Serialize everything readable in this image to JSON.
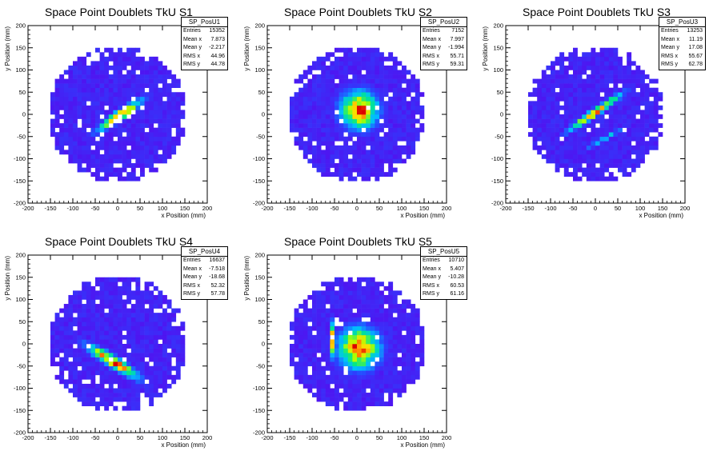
{
  "charts": [
    {
      "title": "Space Point Doublets TkU S1",
      "stat_name": "SP_PosU1",
      "stats": [
        {
          "label": "Entries",
          "value": "15352"
        },
        {
          "label": "Mean x",
          "value": "7.873"
        },
        {
          "label": "Mean y",
          "value": "-2.217"
        },
        {
          "label": "RMS x",
          "value": "44.96"
        },
        {
          "label": "RMS y",
          "value": "44.78"
        }
      ]
    },
    {
      "title": "Space Point Doublets TkU S2",
      "stat_name": "SP_PosU2",
      "stats": [
        {
          "label": "Entries",
          "value": "7152"
        },
        {
          "label": "Mean x",
          "value": "7.997"
        },
        {
          "label": "Mean y",
          "value": "-1.994"
        },
        {
          "label": "RMS x",
          "value": "55.71"
        },
        {
          "label": "RMS y",
          "value": "59.31"
        }
      ]
    },
    {
      "title": "Space Point Doublets TkU S3",
      "stat_name": "SP_PosU3",
      "stats": [
        {
          "label": "Entries",
          "value": "13253"
        },
        {
          "label": "Mean x",
          "value": "11.19"
        },
        {
          "label": "Mean y",
          "value": "17.08"
        },
        {
          "label": "RMS x",
          "value": "55.67"
        },
        {
          "label": "RMS y",
          "value": "62.78"
        }
      ]
    },
    {
      "title": "Space Point Doublets TkU S4",
      "stat_name": "SP_PosU4",
      "stats": [
        {
          "label": "Entries",
          "value": "16637"
        },
        {
          "label": "Mean x",
          "value": "-7.518"
        },
        {
          "label": "Mean y",
          "value": "-18.68"
        },
        {
          "label": "RMS x",
          "value": "52.32"
        },
        {
          "label": "RMS y",
          "value": "57.78"
        }
      ]
    },
    {
      "title": "Space Point Doublets TkU S5",
      "stat_name": "SP_PosU5",
      "stats": [
        {
          "label": "Entries",
          "value": "10710"
        },
        {
          "label": "Mean x",
          "value": "5.407"
        },
        {
          "label": "Mean y",
          "value": "-10.28"
        },
        {
          "label": "RMS x",
          "value": "60.53"
        },
        {
          "label": "RMS y",
          "value": "61.16"
        }
      ]
    }
  ],
  "chart_data": [
    {
      "type": "heatmap",
      "title": "Space Point Doublets TkU S1",
      "xlabel": "x Position (mm)",
      "ylabel": "y Position (mm)",
      "xlim": [
        -200,
        200
      ],
      "ylim": [
        -200,
        200
      ],
      "xticks": [
        -200,
        -150,
        -100,
        -50,
        0,
        50,
        100,
        150,
        200
      ],
      "yticks": [
        -200,
        -150,
        -100,
        -50,
        0,
        50,
        100,
        150,
        200
      ],
      "sensitive_radius_mm": 155,
      "features": [
        {
          "shape": "band",
          "center": [
            5,
            -2
          ],
          "angle_deg": 35,
          "length_mm": 110,
          "width_mm": 16,
          "peak": "red"
        }
      ]
    },
    {
      "type": "heatmap",
      "title": "Space Point Doublets TkU S2",
      "xlabel": "x Position (mm)",
      "ylabel": "y Position (mm)",
      "xlim": [
        -200,
        200
      ],
      "ylim": [
        -200,
        200
      ],
      "xticks": [
        -200,
        -150,
        -100,
        -50,
        0,
        50,
        100,
        150,
        200
      ],
      "yticks": [
        -200,
        -150,
        -100,
        -50,
        0,
        50,
        100,
        150,
        200
      ],
      "sensitive_radius_mm": 155,
      "features": [
        {
          "shape": "blob",
          "center": [
            5,
            10
          ],
          "spread_mm": 55,
          "peak": "red"
        }
      ]
    },
    {
      "type": "heatmap",
      "title": "Space Point Doublets TkU S3",
      "xlabel": "x Position (mm)",
      "ylabel": "y Position (mm)",
      "xlim": [
        -200,
        200
      ],
      "ylim": [
        -200,
        200
      ],
      "xticks": [
        -200,
        -150,
        -100,
        -50,
        0,
        50,
        100,
        150,
        200
      ],
      "yticks": [
        -200,
        -150,
        -100,
        -50,
        0,
        50,
        100,
        150,
        200
      ],
      "sensitive_radius_mm": 155,
      "features": [
        {
          "shape": "band",
          "center": [
            0,
            5
          ],
          "angle_deg": 35,
          "length_mm": 130,
          "width_mm": 12,
          "peak": "red"
        },
        {
          "shape": "band",
          "center": [
            20,
            -55
          ],
          "angle_deg": 30,
          "length_mm": 100,
          "width_mm": 8,
          "peak": "cyan"
        }
      ]
    },
    {
      "type": "heatmap",
      "title": "Space Point Doublets TkU S4",
      "xlabel": "x Position (mm)",
      "ylabel": "y Position (mm)",
      "xlim": [
        -200,
        200
      ],
      "ylim": [
        -200,
        200
      ],
      "xticks": [
        -200,
        -150,
        -100,
        -50,
        0,
        50,
        100,
        150,
        200
      ],
      "yticks": [
        -200,
        -150,
        -100,
        -50,
        0,
        50,
        100,
        150,
        200
      ],
      "sensitive_radius_mm": 155,
      "features": [
        {
          "shape": "band",
          "center": [
            -10,
            -40
          ],
          "angle_deg": -32,
          "length_mm": 130,
          "width_mm": 18,
          "peak": "red"
        }
      ]
    },
    {
      "type": "heatmap",
      "title": "Space Point Doublets TkU S5",
      "xlabel": "x Position (mm)",
      "ylabel": "y Position (mm)",
      "xlim": [
        -200,
        200
      ],
      "ylim": [
        -200,
        200
      ],
      "xticks": [
        -200,
        -150,
        -100,
        -50,
        0,
        50,
        100,
        150,
        200
      ],
      "yticks": [
        -200,
        -150,
        -100,
        -50,
        0,
        50,
        100,
        150,
        200
      ],
      "sensitive_radius_mm": 155,
      "features": [
        {
          "shape": "blob",
          "center": [
            5,
            -10
          ],
          "spread_mm": 60,
          "peak": "red"
        },
        {
          "shape": "band",
          "center": [
            -55,
            10
          ],
          "angle_deg": 90,
          "length_mm": 70,
          "width_mm": 8,
          "peak": "red"
        }
      ]
    }
  ]
}
